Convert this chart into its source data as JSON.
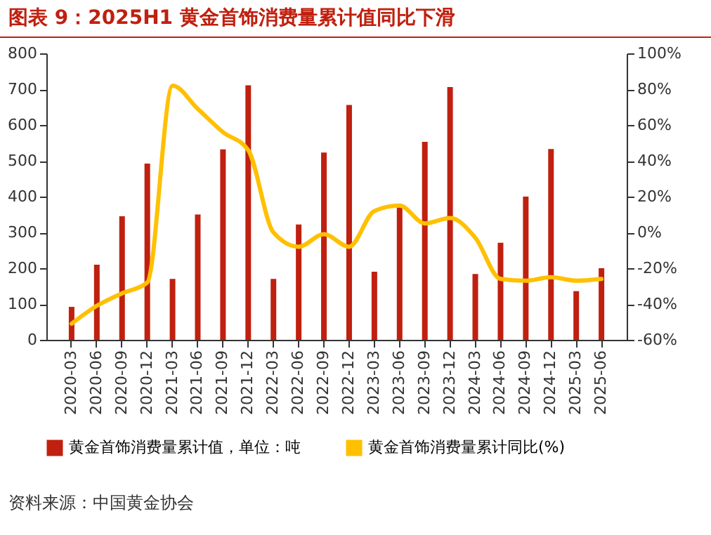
{
  "chart_data": {
    "type": "bar",
    "title": "图表 9：2025H1 黄金首饰消费量累计值同比下滑",
    "categories": [
      "2020-03",
      "2020-06",
      "2020-09",
      "2020-12",
      "2021-03",
      "2021-06",
      "2021-09",
      "2021-12",
      "2022-03",
      "2022-06",
      "2022-09",
      "2022-12",
      "2023-03",
      "2023-06",
      "2023-09",
      "2023-12",
      "2024-03",
      "2024-06",
      "2024-09",
      "2024-12",
      "2025-03",
      "2025-06"
    ],
    "series": [
      {
        "name": "黄金首饰消费量累计值，单位：吨",
        "color": "#c0200f",
        "values": [
          92,
          210,
          345,
          492,
          170,
          350,
          532,
          711,
          170,
          322,
          523,
          656,
          190,
          370,
          553,
          706,
          184,
          271,
          400,
          533,
          136,
          200
        ]
      },
      {
        "name": "黄金首饰消费量累计同比(%)",
        "type": "line",
        "axis": "y2",
        "color": "#ffc000",
        "values": [
          -51,
          -41,
          -34,
          -28,
          82,
          69,
          56,
          46,
          0,
          -8,
          -1,
          -8,
          12,
          15,
          5,
          8,
          -3,
          -26,
          -27,
          -25,
          -27,
          -26
        ]
      }
    ],
    "ylim": [
      0,
      800
    ],
    "yticks": [
      0,
      100,
      200,
      300,
      400,
      500,
      600,
      700,
      800
    ],
    "y2lim": [
      -60,
      100
    ],
    "y2ticks": [
      {
        "value": -60,
        "label": "-60%"
      },
      {
        "value": -40,
        "label": "-40%"
      },
      {
        "value": -20,
        "label": "-20%"
      },
      {
        "value": 0,
        "label": "0%"
      },
      {
        "value": 20,
        "label": "20%"
      },
      {
        "value": 40,
        "label": "40%"
      },
      {
        "value": 60,
        "label": "60%"
      },
      {
        "value": 80,
        "label": "80%"
      },
      {
        "value": 100,
        "label": "100%"
      }
    ],
    "legend": "bottom",
    "grid": false,
    "marker": "none",
    "line_style": "solid",
    "annotations": [
      "资料来源：中国黄金协会"
    ]
  }
}
